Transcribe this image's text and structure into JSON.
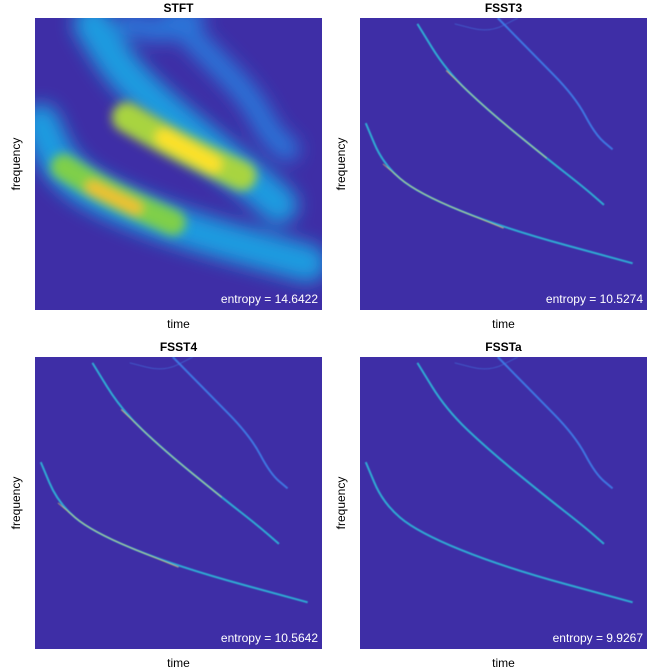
{
  "chart_data": [
    {
      "type": "spectrogram",
      "style": "blurred",
      "title": "STFT",
      "xlabel": "time",
      "ylabel": "frequency",
      "annotation": "entropy = 14.6422"
    },
    {
      "type": "spectrogram",
      "style": "sharp",
      "title": "FSST3",
      "xlabel": "time",
      "ylabel": "frequency",
      "annotation": "entropy = 10.5274"
    },
    {
      "type": "spectrogram",
      "style": "sharp",
      "title": "FSST4",
      "xlabel": "time",
      "ylabel": "frequency",
      "annotation": "entropy = 10.5642"
    },
    {
      "type": "spectrogram",
      "style": "sharp",
      "title": "FSSTa",
      "xlabel": "time",
      "ylabel": "frequency",
      "annotation": "entropy = 9.9267"
    }
  ]
}
